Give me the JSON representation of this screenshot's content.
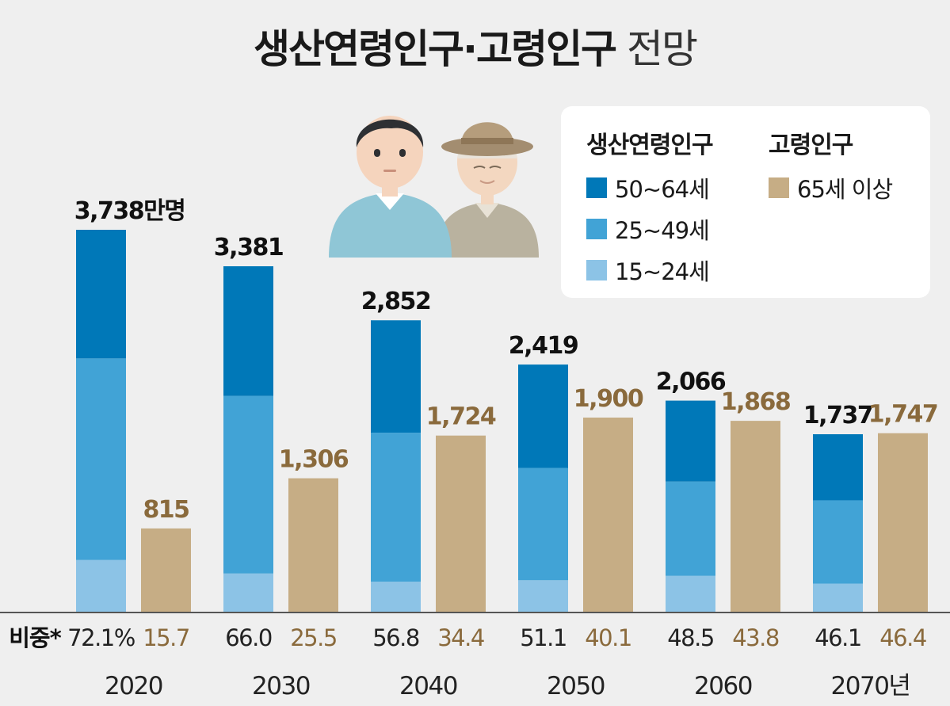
{
  "title": {
    "bold": "생산연령인구·고령인구",
    "light": "전망"
  },
  "legend": {
    "group1": "생산연령인구",
    "group2": "고령인구",
    "items": [
      {
        "label": "50~64세",
        "color": "#0078b8"
      },
      {
        "label": "25~49세",
        "color": "#41a3d6"
      },
      {
        "label": "15~24세",
        "color": "#8cc3e6"
      },
      {
        "label": "65세 이상",
        "color": "#c6ad85"
      }
    ]
  },
  "ratio_label": "비중*",
  "colors": {
    "age50_64": "#0078b8",
    "age25_49": "#41a3d6",
    "age15_24": "#8cc3e6",
    "elderly": "#c6ad85",
    "elderly_text": "#8a6a3c"
  },
  "chart_data": {
    "type": "bar",
    "title": "생산연령인구·고령인구 전망",
    "unit": "만명",
    "categories": [
      "2020",
      "2030",
      "2040",
      "2050",
      "2060",
      "2070년"
    ],
    "working_total_labels": [
      "3,738만명",
      "3,381",
      "2,852",
      "2,419",
      "2,066",
      "1,737"
    ],
    "elderly_labels": [
      "815",
      "1,306",
      "1,724",
      "1,900",
      "1,868",
      "1,747"
    ],
    "series": [
      {
        "name": "50~64세",
        "values": [
          1259,
          1269,
          1100,
          1012,
          792,
          647
        ]
      },
      {
        "name": "25~49세",
        "values": [
          1973,
          1738,
          1458,
          1099,
          923,
          815
        ]
      },
      {
        "name": "15~24세",
        "values": [
          506,
          374,
          294,
          308,
          351,
          275
        ]
      },
      {
        "name": "65세 이상",
        "values": [
          815,
          1306,
          1724,
          1900,
          1868,
          1747
        ]
      }
    ],
    "ratio_working": [
      "72.1%",
      "66.0",
      "56.8",
      "51.1",
      "48.5",
      "46.1"
    ],
    "ratio_elderly": [
      "15.7",
      "25.5",
      "34.4",
      "40.1",
      "43.8",
      "46.4"
    ],
    "ylim": [
      0,
      3738
    ]
  }
}
